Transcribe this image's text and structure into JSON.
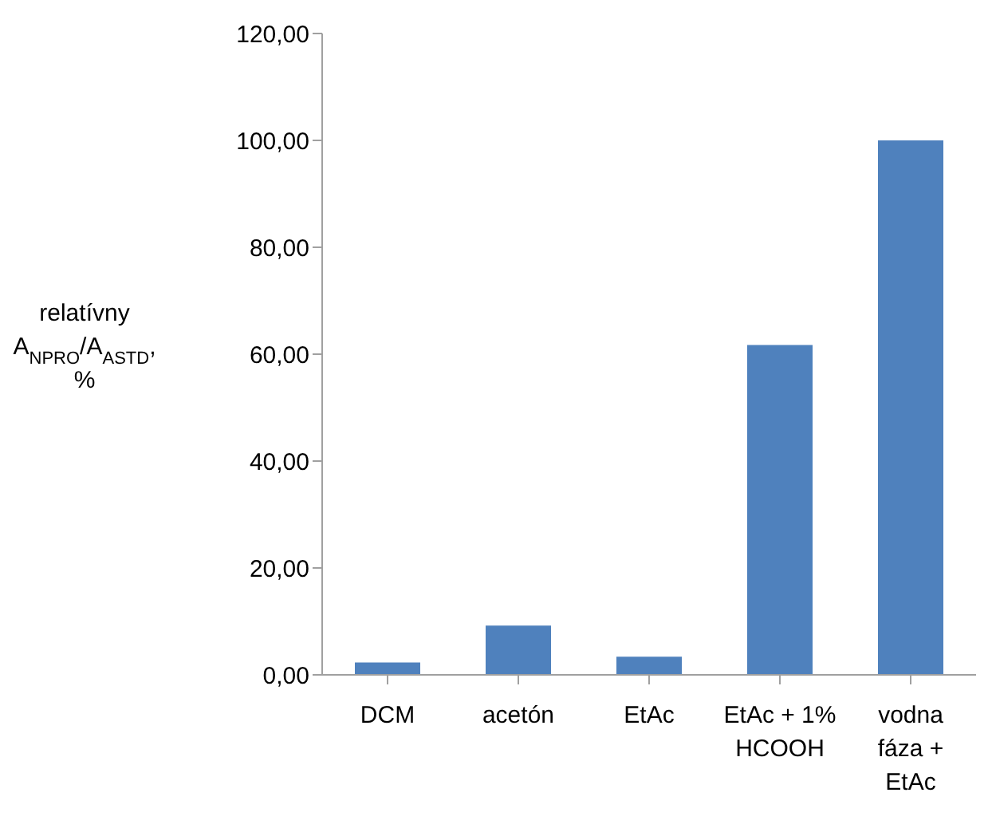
{
  "chart_data": {
    "type": "bar",
    "ylabel": "relatívny A$_{NPRO}$/A$_{ASTD}$, %",
    "categories": [
      "DCM",
      "acetón",
      "EtAc",
      "EtAc + 1% HCOOH",
      "vodna fáza + EtAc"
    ],
    "values": [
      2.3,
      9.2,
      3.4,
      61.7,
      100
    ],
    "color": "#4f81bd",
    "ylim": [
      0,
      120
    ],
    "yticks": [
      {
        "value": 0,
        "label": "0,00"
      },
      {
        "value": 20,
        "label": "20,00"
      },
      {
        "value": 40,
        "label": "40,00"
      },
      {
        "value": 60,
        "label": "60,00"
      },
      {
        "value": 80,
        "label": "80,00"
      },
      {
        "value": 100,
        "label": "100,00"
      },
      {
        "value": 120,
        "label": "120,00"
      }
    ],
    "grid": false,
    "legend": false
  }
}
